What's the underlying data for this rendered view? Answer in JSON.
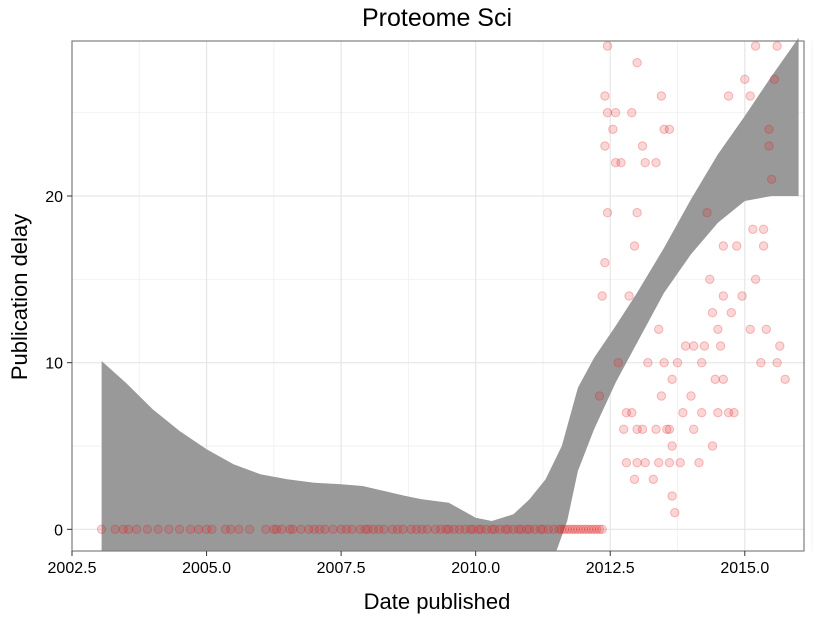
{
  "chart_data": {
    "type": "scatter",
    "title": "Proteome Sci",
    "xlabel": "Date published",
    "ylabel": "Publication delay",
    "xlim": [
      2002.5,
      2016.1
    ],
    "ylim": [
      -1.3,
      29.3
    ],
    "xticks": [
      "2002.5",
      "2005.0",
      "2007.5",
      "2010.0",
      "2012.5",
      "2015.0"
    ],
    "yticks": [
      "0",
      "10",
      "20"
    ],
    "grid": true,
    "point_color": "#e41a1c",
    "band_color": "#999999",
    "points": [
      [
        3.05,
        0
      ],
      [
        3.3,
        0
      ],
      [
        3.45,
        0
      ],
      [
        3.55,
        0
      ],
      [
        3.7,
        0
      ],
      [
        3.9,
        0
      ],
      [
        4.1,
        0
      ],
      [
        4.3,
        0
      ],
      [
        4.5,
        0
      ],
      [
        4.7,
        0
      ],
      [
        4.85,
        0
      ],
      [
        5.0,
        0
      ],
      [
        5.1,
        0
      ],
      [
        5.35,
        0
      ],
      [
        5.45,
        0
      ],
      [
        5.6,
        0
      ],
      [
        5.8,
        0
      ],
      [
        6.1,
        0
      ],
      [
        6.25,
        0
      ],
      [
        6.3,
        0
      ],
      [
        6.4,
        0
      ],
      [
        6.55,
        0
      ],
      [
        6.6,
        0
      ],
      [
        6.75,
        0
      ],
      [
        6.9,
        0
      ],
      [
        7.0,
        0
      ],
      [
        7.1,
        0
      ],
      [
        7.2,
        0
      ],
      [
        7.35,
        0
      ],
      [
        7.5,
        0
      ],
      [
        7.6,
        0
      ],
      [
        7.7,
        0
      ],
      [
        7.85,
        0
      ],
      [
        7.95,
        0
      ],
      [
        8.0,
        0
      ],
      [
        8.1,
        0
      ],
      [
        8.2,
        0
      ],
      [
        8.3,
        0
      ],
      [
        8.45,
        0
      ],
      [
        8.55,
        0
      ],
      [
        8.65,
        0
      ],
      [
        8.8,
        0
      ],
      [
        8.9,
        0
      ],
      [
        9.0,
        0
      ],
      [
        9.1,
        0
      ],
      [
        9.25,
        0
      ],
      [
        9.35,
        0
      ],
      [
        9.45,
        0
      ],
      [
        9.5,
        0
      ],
      [
        9.6,
        0
      ],
      [
        9.7,
        0
      ],
      [
        9.8,
        0
      ],
      [
        9.9,
        0
      ],
      [
        9.95,
        0
      ],
      [
        10.05,
        0
      ],
      [
        10.1,
        0
      ],
      [
        10.2,
        0
      ],
      [
        10.3,
        0
      ],
      [
        10.35,
        0
      ],
      [
        10.45,
        0
      ],
      [
        10.55,
        0
      ],
      [
        10.6,
        0
      ],
      [
        10.7,
        0
      ],
      [
        10.8,
        0
      ],
      [
        10.85,
        0
      ],
      [
        10.95,
        0
      ],
      [
        11.0,
        0
      ],
      [
        11.1,
        0
      ],
      [
        11.2,
        0
      ],
      [
        11.25,
        0
      ],
      [
        11.35,
        0
      ],
      [
        11.45,
        0
      ],
      [
        11.55,
        0
      ],
      [
        11.6,
        0
      ],
      [
        11.65,
        0
      ],
      [
        11.7,
        0
      ],
      [
        11.75,
        0
      ],
      [
        11.8,
        0
      ],
      [
        11.85,
        0
      ],
      [
        11.9,
        0
      ],
      [
        11.95,
        0
      ],
      [
        12.0,
        0
      ],
      [
        12.05,
        0
      ],
      [
        12.1,
        0
      ],
      [
        12.15,
        0
      ],
      [
        12.2,
        0
      ],
      [
        12.25,
        0
      ],
      [
        12.3,
        0
      ],
      [
        12.35,
        0
      ],
      [
        12.3,
        8
      ],
      [
        12.35,
        14
      ],
      [
        12.4,
        16
      ],
      [
        12.45,
        19
      ],
      [
        12.4,
        23
      ],
      [
        12.45,
        25
      ],
      [
        12.4,
        26
      ],
      [
        12.45,
        29
      ],
      [
        12.55,
        24
      ],
      [
        12.6,
        22
      ],
      [
        12.6,
        25
      ],
      [
        12.65,
        10
      ],
      [
        12.7,
        22
      ],
      [
        12.75,
        6
      ],
      [
        12.8,
        4
      ],
      [
        12.8,
        7
      ],
      [
        12.85,
        14
      ],
      [
        12.9,
        7
      ],
      [
        12.9,
        25
      ],
      [
        12.95,
        3
      ],
      [
        12.95,
        17
      ],
      [
        13.0,
        4
      ],
      [
        13.0,
        6
      ],
      [
        13.0,
        19
      ],
      [
        13.0,
        28
      ],
      [
        13.1,
        6
      ],
      [
        13.1,
        23
      ],
      [
        13.15,
        22
      ],
      [
        13.15,
        4
      ],
      [
        13.2,
        10
      ],
      [
        13.3,
        3
      ],
      [
        13.35,
        6
      ],
      [
        13.35,
        22
      ],
      [
        13.4,
        4
      ],
      [
        13.4,
        12
      ],
      [
        13.45,
        8
      ],
      [
        13.45,
        26
      ],
      [
        13.5,
        10
      ],
      [
        13.5,
        24
      ],
      [
        13.55,
        6
      ],
      [
        13.6,
        4
      ],
      [
        13.6,
        6
      ],
      [
        13.6,
        24
      ],
      [
        13.65,
        2
      ],
      [
        13.65,
        9
      ],
      [
        13.65,
        5
      ],
      [
        13.7,
        1
      ],
      [
        13.75,
        10
      ],
      [
        13.8,
        4
      ],
      [
        13.85,
        7
      ],
      [
        13.9,
        11
      ],
      [
        14.0,
        8
      ],
      [
        14.05,
        6
      ],
      [
        14.05,
        11
      ],
      [
        14.15,
        4
      ],
      [
        14.2,
        7
      ],
      [
        14.2,
        10
      ],
      [
        14.25,
        11
      ],
      [
        14.3,
        19
      ],
      [
        14.35,
        15
      ],
      [
        14.4,
        5
      ],
      [
        14.4,
        13
      ],
      [
        14.45,
        9
      ],
      [
        14.5,
        7
      ],
      [
        14.5,
        12
      ],
      [
        14.55,
        11
      ],
      [
        14.6,
        9
      ],
      [
        14.6,
        14
      ],
      [
        14.6,
        17
      ],
      [
        14.7,
        7
      ],
      [
        14.7,
        26
      ],
      [
        14.75,
        13
      ],
      [
        14.8,
        7
      ],
      [
        14.85,
        17
      ],
      [
        14.95,
        14
      ],
      [
        15.0,
        27
      ],
      [
        15.1,
        12
      ],
      [
        15.1,
        26
      ],
      [
        15.15,
        18
      ],
      [
        15.2,
        29
      ],
      [
        15.2,
        15
      ],
      [
        15.3,
        10
      ],
      [
        15.35,
        18
      ],
      [
        15.35,
        17
      ],
      [
        15.4,
        12
      ],
      [
        15.45,
        24
      ],
      [
        15.45,
        23
      ],
      [
        15.5,
        21
      ],
      [
        15.55,
        27
      ],
      [
        15.6,
        29
      ],
      [
        15.6,
        10
      ],
      [
        15.65,
        11
      ],
      [
        15.75,
        9
      ]
    ],
    "band_upper": [
      [
        3.05,
        10.1
      ],
      [
        3.5,
        8.8
      ],
      [
        4.0,
        7.2
      ],
      [
        4.5,
        5.9
      ],
      [
        5.0,
        4.8
      ],
      [
        5.5,
        3.9
      ],
      [
        6.0,
        3.3
      ],
      [
        6.5,
        3.0
      ],
      [
        7.0,
        2.8
      ],
      [
        7.5,
        2.7
      ],
      [
        7.9,
        2.6
      ],
      [
        8.3,
        2.3
      ],
      [
        8.7,
        2.0
      ],
      [
        9.0,
        1.8
      ],
      [
        9.5,
        1.6
      ],
      [
        10.0,
        0.7
      ],
      [
        10.3,
        0.5
      ],
      [
        10.7,
        0.9
      ],
      [
        11.0,
        1.8
      ],
      [
        11.3,
        3.0
      ],
      [
        11.6,
        5.0
      ],
      [
        11.9,
        8.5
      ],
      [
        12.2,
        10.3
      ],
      [
        12.6,
        12.2
      ],
      [
        13.0,
        14.2
      ],
      [
        13.5,
        16.9
      ],
      [
        14.0,
        19.8
      ],
      [
        14.5,
        22.5
      ],
      [
        15.0,
        24.8
      ],
      [
        15.5,
        27.2
      ],
      [
        16.0,
        29.5
      ]
    ],
    "band_lower": [
      [
        3.05,
        -1.3
      ],
      [
        11.5,
        -1.3
      ],
      [
        11.7,
        0.5
      ],
      [
        11.9,
        3.5
      ],
      [
        12.2,
        6.0
      ],
      [
        12.6,
        8.8
      ],
      [
        13.0,
        11.2
      ],
      [
        13.5,
        14.2
      ],
      [
        14.0,
        16.5
      ],
      [
        14.5,
        18.4
      ],
      [
        15.0,
        19.7
      ],
      [
        15.5,
        20.0
      ],
      [
        16.0,
        20.0
      ]
    ]
  }
}
